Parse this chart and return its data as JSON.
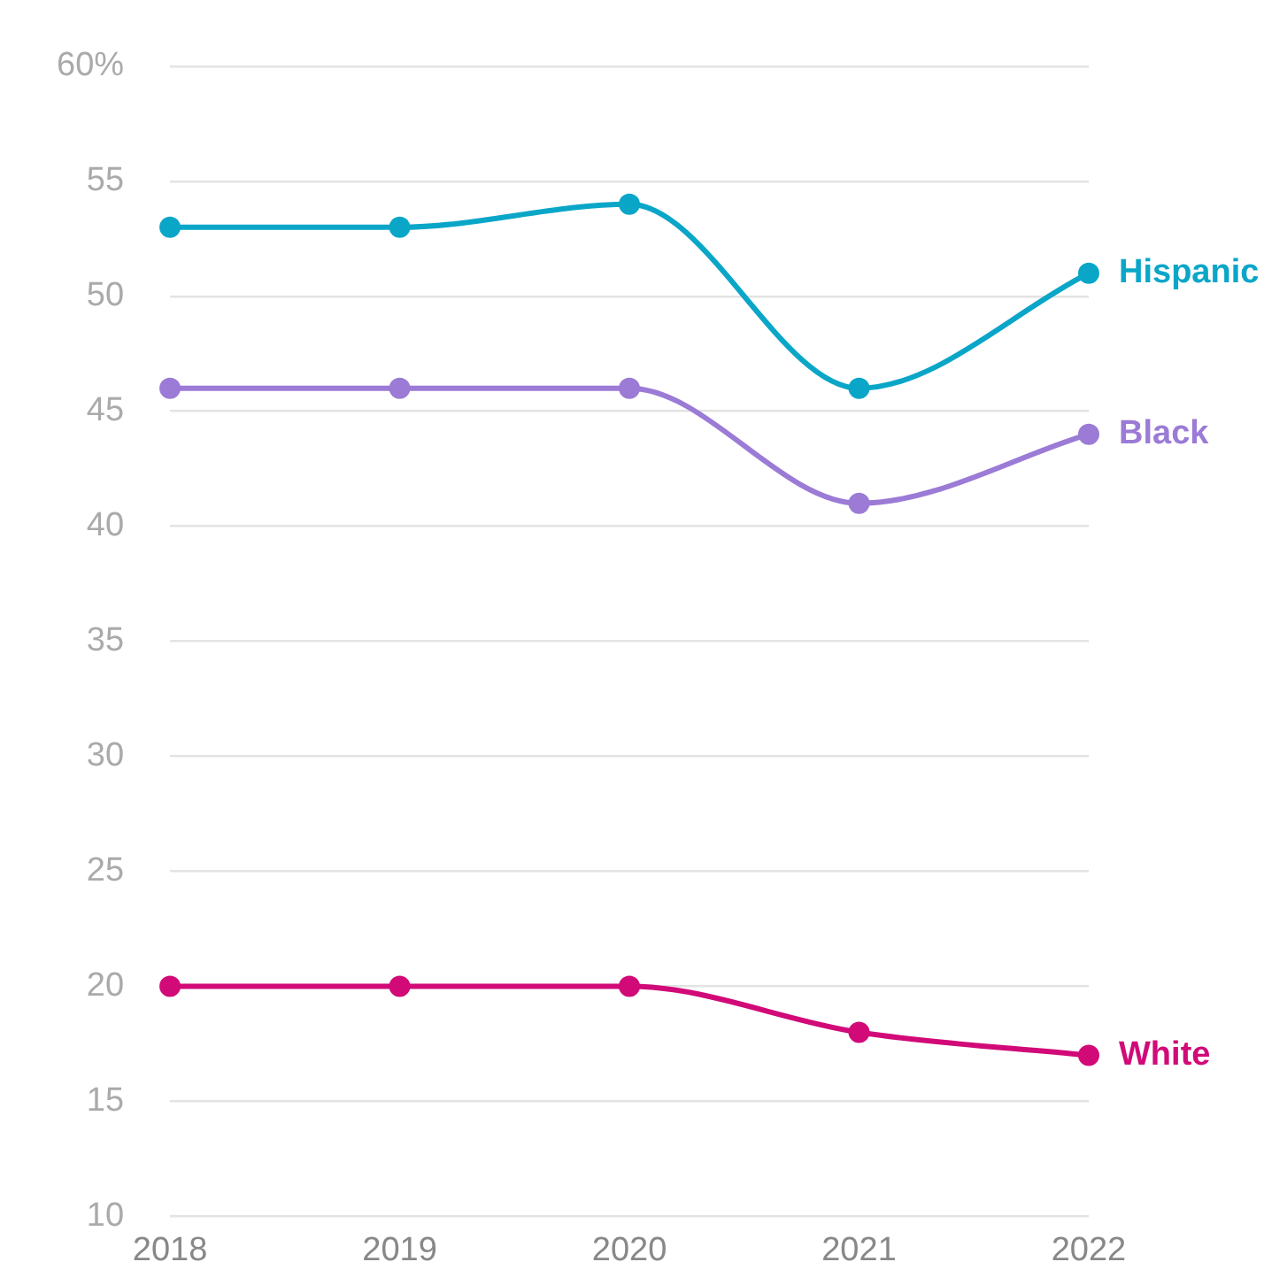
{
  "chart_data": {
    "type": "line",
    "categories": [
      "2018",
      "2019",
      "2020",
      "2021",
      "2022"
    ],
    "series": [
      {
        "name": "Hispanic",
        "color": "#0aa6c8",
        "values": [
          53,
          53,
          54,
          46,
          51
        ]
      },
      {
        "name": "Black",
        "color": "#9b7bd6",
        "values": [
          46,
          46,
          46,
          41,
          44
        ]
      },
      {
        "name": "White",
        "color": "#d10a78",
        "values": [
          20,
          20,
          20,
          18,
          17
        ]
      }
    ],
    "ylim": [
      10,
      60
    ],
    "yticks": [
      10,
      15,
      20,
      25,
      30,
      35,
      40,
      45,
      50,
      55,
      {
        "value": 60,
        "label": "60%"
      }
    ],
    "grid": "y",
    "legend": false,
    "marker": "circle",
    "line_style": "solid"
  }
}
